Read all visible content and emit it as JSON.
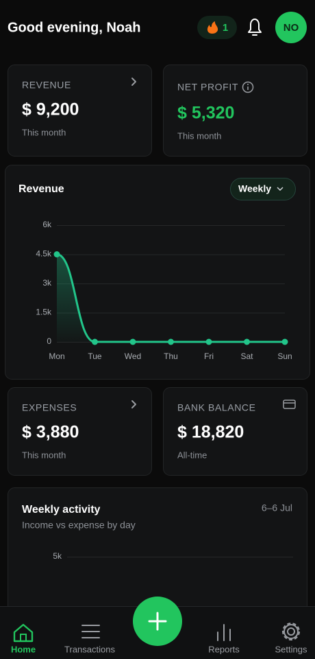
{
  "header": {
    "greeting": "Good evening, Noah",
    "streak": "1",
    "avatar": "NO"
  },
  "cards": {
    "revenue": {
      "label": "REVENUE",
      "value": "$ 9,200",
      "note": "This month"
    },
    "net_profit": {
      "label": "NET PROFIT",
      "value": "$ 5,320",
      "note": "This month"
    },
    "expenses": {
      "label": "EXPENSES",
      "value": "$ 3,880",
      "note": "This month"
    },
    "bank_balance": {
      "label": "BANK BALANCE",
      "value": "$ 18,820",
      "note": "All-time"
    }
  },
  "revenue_panel": {
    "period": "Weekly"
  },
  "chart_data": {
    "type": "line",
    "title": "Revenue",
    "color": "#22c58a",
    "categories": [
      "Mon",
      "Tue",
      "Wed",
      "Thu",
      "Fri",
      "Sat",
      "Sun"
    ],
    "values": [
      4500,
      0,
      0,
      0,
      0,
      0,
      0
    ],
    "ylim": [
      0,
      6000
    ],
    "yticks": [
      0,
      {
        "value": 1500,
        "label": "1.5k"
      },
      {
        "value": 3000,
        "label": "3k"
      },
      {
        "value": 4500,
        "label": "4.5k"
      },
      {
        "value": 6000,
        "label": "6k"
      }
    ],
    "grid": true
  },
  "weekly_activity": {
    "title": "Weekly activity",
    "subtitle": "Income vs expense by day",
    "range": "6–6 Jul",
    "yticks": [
      {
        "value": 5000,
        "label": "5k"
      }
    ]
  },
  "nav": {
    "items": [
      "Home",
      "Transactions",
      "Reports",
      "Settings"
    ]
  }
}
